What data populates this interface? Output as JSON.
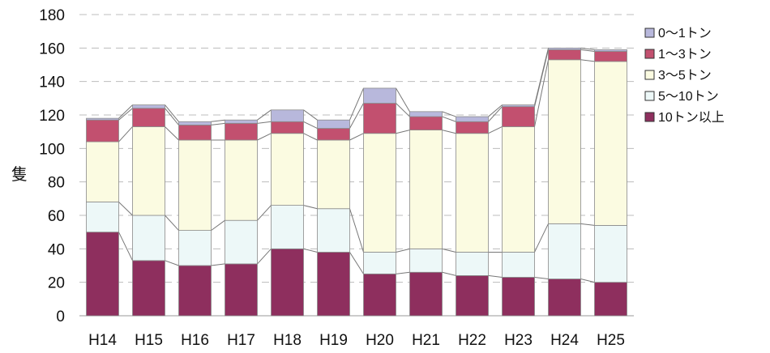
{
  "chart_data": {
    "type": "bar",
    "stacked": true,
    "title": "",
    "xlabel": "",
    "ylabel": "隻",
    "ylim": [
      0,
      180
    ],
    "yticks": [
      0,
      20,
      40,
      60,
      80,
      100,
      120,
      140,
      160,
      180
    ],
    "grid": "horizontal-dashed",
    "legend_position": "right",
    "categories": [
      "H14",
      "H15",
      "H16",
      "H17",
      "H18",
      "H19",
      "H20",
      "H21",
      "H22",
      "H23",
      "H24",
      "H25"
    ],
    "series": [
      {
        "name": "10トン以上",
        "color": "#8e2f5e",
        "values": [
          50,
          33,
          30,
          31,
          40,
          38,
          25,
          26,
          24,
          23,
          22,
          20
        ]
      },
      {
        "name": "5～10トン",
        "color": "#edf8f8",
        "values": [
          18,
          27,
          21,
          26,
          26,
          26,
          13,
          14,
          14,
          15,
          33,
          34
        ]
      },
      {
        "name": "3～5トン",
        "color": "#fbfbe1",
        "values": [
          36,
          53,
          54,
          48,
          43,
          41,
          71,
          71,
          71,
          75,
          98,
          98
        ]
      },
      {
        "name": "1～3トン",
        "color": "#c2506f",
        "values": [
          13,
          11,
          9,
          10,
          7,
          7,
          18,
          8,
          7,
          12,
          6,
          6
        ]
      },
      {
        "name": "0～1トン",
        "color": "#b8b8dc",
        "values": [
          1,
          2,
          2,
          2,
          7,
          5,
          9,
          3,
          3,
          1,
          1,
          1
        ]
      }
    ]
  }
}
